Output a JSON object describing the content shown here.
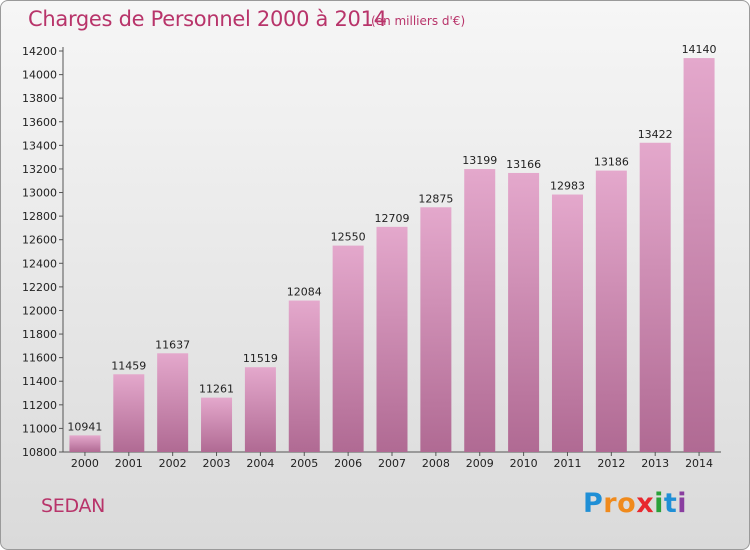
{
  "title": "Charges de Personnel 2000 à 2014",
  "subtitle": "(en milliers d'€)",
  "city": "SEDAN",
  "logo": {
    "letters": [
      "P",
      "r",
      "o",
      "x",
      "i",
      "t",
      "i"
    ],
    "colors": [
      "#1f8fd6",
      "#f08a1c",
      "#f08a1c",
      "#e8282f",
      "#2aa13a",
      "#1f8fd6",
      "#8a3ea0"
    ]
  },
  "colors": {
    "title": "#b8346a",
    "bar_top": "#e4a8cc",
    "bar_bottom": "#b06a93"
  },
  "chart_data": {
    "type": "bar",
    "categories": [
      "2000",
      "2001",
      "2002",
      "2003",
      "2004",
      "2005",
      "2006",
      "2007",
      "2008",
      "2009",
      "2010",
      "2011",
      "2012",
      "2013",
      "2014"
    ],
    "values": [
      10941,
      11459,
      11637,
      11261,
      11519,
      12084,
      12550,
      12709,
      12875,
      13199,
      13166,
      12983,
      13186,
      13422,
      14140
    ],
    "ylim": [
      10800,
      14200
    ],
    "yticks": [
      10800,
      11000,
      11200,
      11400,
      11600,
      11800,
      12000,
      12200,
      12400,
      12600,
      12800,
      13000,
      13200,
      13400,
      13600,
      13800,
      14000,
      14200
    ],
    "grid": false,
    "legend": "none"
  }
}
